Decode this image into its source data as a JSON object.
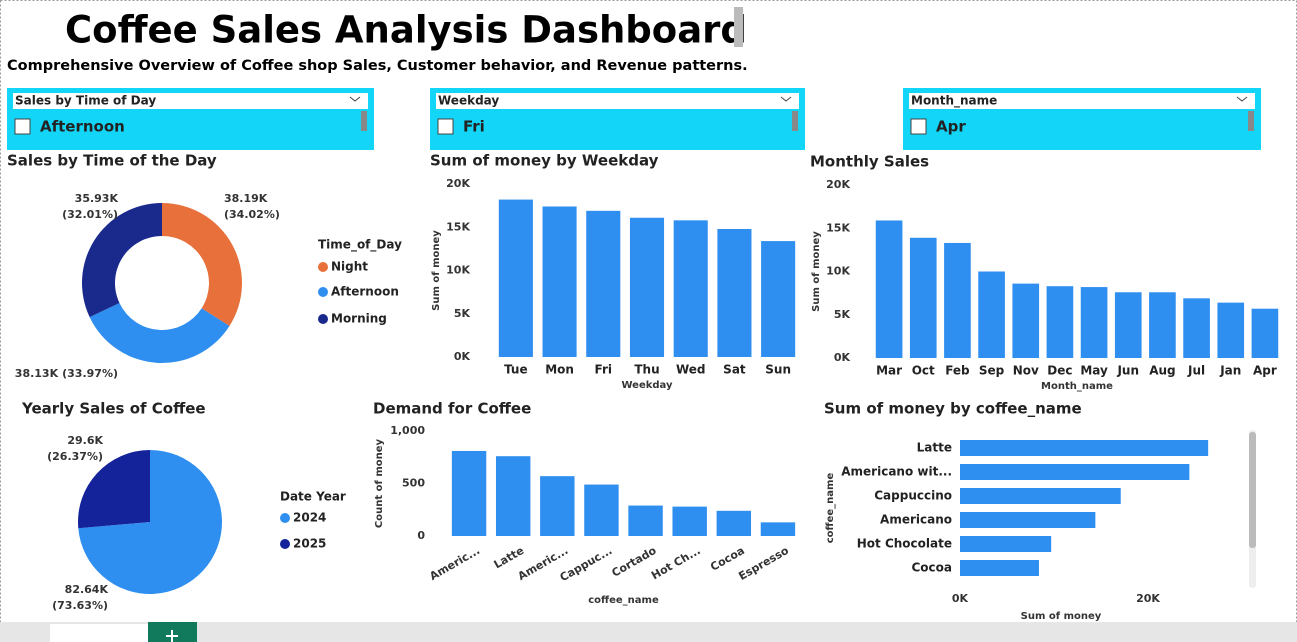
{
  "header": {
    "title": "Coffee Sales Analysis  Dashboard",
    "subtitle": "Comprehensive Overview of Coffee shop Sales, Customer behavior, and Revenue patterns."
  },
  "slicers": [
    {
      "title": "Sales by Time of Day",
      "item": "Afternoon"
    },
    {
      "title": "Weekday",
      "item": "Fri"
    },
    {
      "title": "Month_name",
      "item": "Apr"
    }
  ],
  "chart_data": [
    {
      "type": "donut",
      "title": "Sales by Time of the Day",
      "legend_title": "Time_of_Day",
      "categories": [
        "Night",
        "Afternoon",
        "Morning"
      ],
      "values": [
        38190,
        38130,
        35930
      ],
      "value_labels": [
        "38.19K",
        "38.13K",
        "35.93K"
      ],
      "percent_labels": [
        "(34.02%)",
        "(33.97%)",
        "(32.01%)"
      ],
      "colors": [
        "#e8703a",
        "#2f8ff0",
        "#1a2a8c"
      ]
    },
    {
      "type": "bar",
      "title": "Sum of money by Weekday",
      "x_label": "Weekday",
      "y_label": "Sum of money",
      "categories": [
        "Tue",
        "Mon",
        "Fri",
        "Thu",
        "Wed",
        "Sat",
        "Sun"
      ],
      "values": [
        18200,
        17400,
        16900,
        16100,
        15800,
        14800,
        13400
      ],
      "color": "#2f8ff0",
      "ylim": [
        0,
        20000
      ],
      "yticks": [
        {
          "value": 0,
          "label": "0K"
        },
        {
          "value": 5000,
          "label": "5K"
        },
        {
          "value": 10000,
          "label": "10K"
        },
        {
          "value": 15000,
          "label": "15K"
        },
        {
          "value": 20000,
          "label": "20K"
        }
      ]
    },
    {
      "type": "bar",
      "title": "Monthly Sales",
      "x_label": "Month_name",
      "y_label": "Sum of money",
      "categories": [
        "Mar",
        "Oct",
        "Feb",
        "Sep",
        "Nov",
        "Dec",
        "May",
        "Jun",
        "Aug",
        "Jul",
        "Jan",
        "Apr"
      ],
      "values": [
        15900,
        13900,
        13300,
        10000,
        8600,
        8300,
        8200,
        7600,
        7600,
        6900,
        6400,
        5700
      ],
      "color": "#2f8ff0",
      "ylim": [
        0,
        20000
      ],
      "yticks": [
        {
          "value": 0,
          "label": "0K"
        },
        {
          "value": 5000,
          "label": "5K"
        },
        {
          "value": 10000,
          "label": "10K"
        },
        {
          "value": 15000,
          "label": "15K"
        },
        {
          "value": 20000,
          "label": "20K"
        }
      ]
    },
    {
      "type": "pie",
      "title": "Yearly Sales of Coffee",
      "legend_title": "Date Year",
      "categories": [
        "2024",
        "2025"
      ],
      "values": [
        82640,
        29600
      ],
      "value_labels": [
        "82.64K",
        "29.6K"
      ],
      "percent_labels": [
        "(73.63%)",
        "(26.37%)"
      ],
      "colors": [
        "#2f8ff0",
        "#14239a"
      ]
    },
    {
      "type": "bar",
      "title": "Demand for Coffee",
      "x_label": "coffee_name",
      "y_label": "Count of money",
      "categories": [
        "Americ...",
        "Latte",
        "Americ...",
        "Cappuc...",
        "Cortado",
        "Hot Ch...",
        "Cocoa",
        "Espresso"
      ],
      "values": [
        810,
        760,
        570,
        490,
        290,
        280,
        240,
        130
      ],
      "color": "#2f8ff0",
      "ylim": [
        0,
        1000
      ],
      "yticks": [
        0,
        500,
        {
          "value": 1000,
          "label": "1,000"
        }
      ]
    },
    {
      "type": "hbar",
      "title": "Sum of money by coffee_name",
      "x_label": "Sum of money",
      "y_label": "coffee_name",
      "categories": [
        "Latte",
        "Americano wit...",
        "Cappuccino",
        "Americano",
        "Hot Chocolate",
        "Cocoa"
      ],
      "values": [
        26400,
        24400,
        17100,
        14400,
        9700,
        8400
      ],
      "color": "#2f8ff0",
      "xlim": [
        0,
        30000
      ],
      "xticks": [
        {
          "value": 0,
          "label": "0K"
        },
        {
          "value": 20000,
          "label": "20K"
        }
      ]
    }
  ]
}
